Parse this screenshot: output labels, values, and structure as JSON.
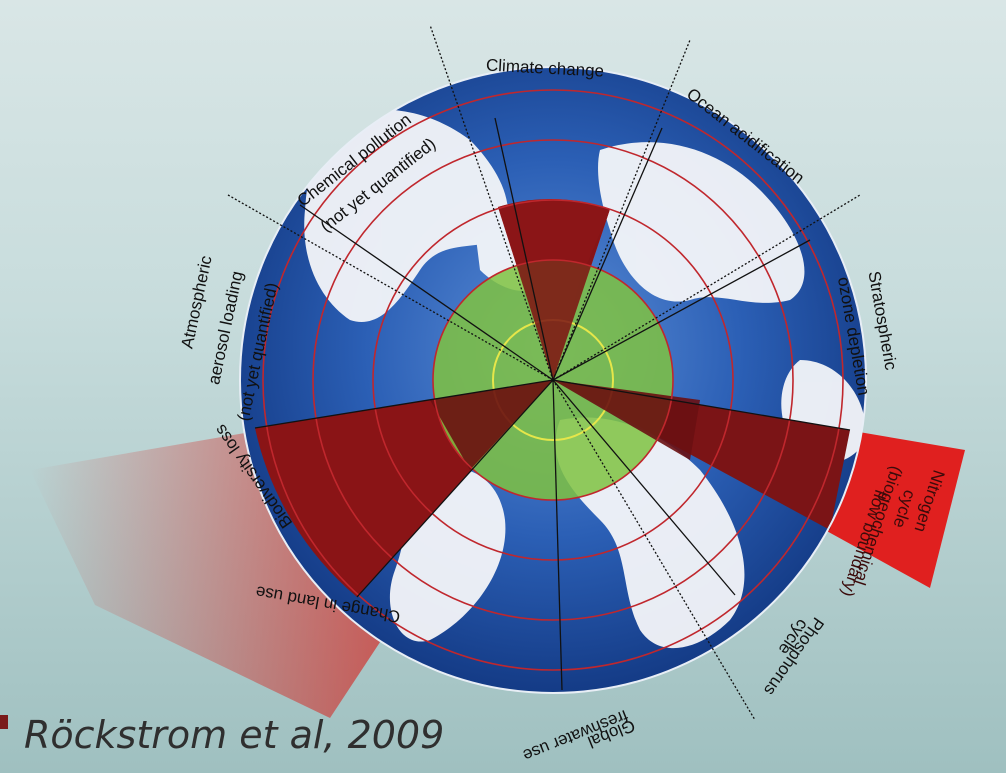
{
  "diagram": {
    "labels": {
      "climate_change": "Climate change",
      "ocean_acidification": "Ocean acidification",
      "stratospheric_ozone_1": "Stratospheric",
      "stratospheric_ozone_2": "ozone depletion",
      "nitrogen_1": "Nitrogen",
      "nitrogen_2": "cycle",
      "nitrogen_3": "(biogeochemical",
      "nitrogen_4": "flow boundary)",
      "phosphorus_1": "Phosphorus",
      "phosphorus_2": "cycle",
      "freshwater_1": "Global",
      "freshwater_2": "freshwater use",
      "land_use": "Change in land use",
      "biodiversity": "Biodiversity loss",
      "aerosol_1": "Atmospheric",
      "aerosol_2": "aerosol loading",
      "aerosol_3": "(not yet quantified)",
      "chemical_1": "Chemical pollution",
      "chemical_2": "(not yet quantified)"
    },
    "colors": {
      "exceeded": "#e0201f",
      "safe_zone": "#7fc241",
      "ocean": "#1f4fa8",
      "ring": "#c0272d"
    }
  },
  "citation": "Röckstrom et al, 2009"
}
